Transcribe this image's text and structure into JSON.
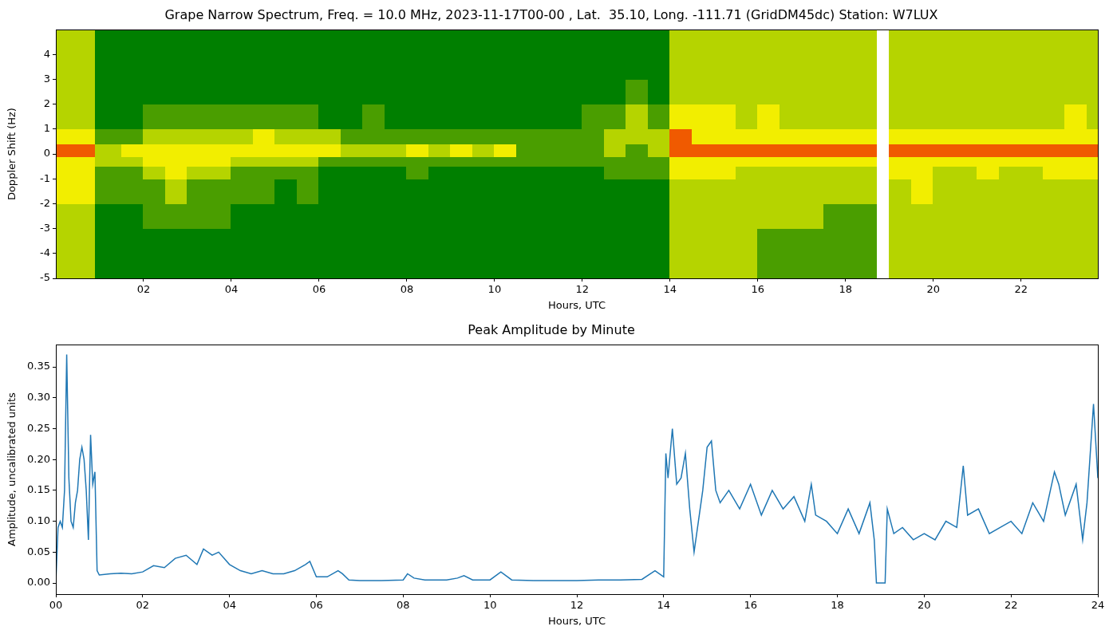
{
  "chart_data": [
    {
      "type": "heatmap",
      "title": "Grape Narrow Spectrum, Freq. = 10.0 MHz, 2023-11-17T00-00 , Lat.  35.10, Long. -111.71 (GridDM45dc) Station: W7LUX",
      "x_label": "Hours, UTC",
      "y_label": "Doppler Shift (Hz)",
      "x_edges": [
        0,
        0.5,
        0.9,
        1.5,
        2,
        2.5,
        3,
        3.5,
        4,
        4.5,
        5,
        5.5,
        6,
        6.5,
        7,
        7.5,
        8,
        8.5,
        9,
        9.5,
        10,
        10.5,
        11,
        11.5,
        12,
        12.5,
        13,
        13.5,
        14,
        14.5,
        15,
        15.5,
        16,
        16.5,
        17,
        17.5,
        18,
        18.5,
        18.7,
        19.0,
        19.5,
        20,
        20.5,
        21,
        21.5,
        22,
        22.5,
        23,
        23.5,
        23.75
      ],
      "y_edges": [
        -5,
        -3,
        -2,
        -1,
        -0.5,
        -0.1,
        0.4,
        1,
        2,
        3,
        5
      ],
      "cells": [
        [
          2,
          2,
          3,
          3,
          3,
          4,
          3,
          2,
          2,
          2
        ],
        [
          2,
          2,
          3,
          3,
          3,
          4,
          3,
          2,
          2,
          2
        ],
        [
          0,
          0,
          1,
          1,
          2,
          2,
          1,
          0,
          0,
          0
        ],
        [
          0,
          0,
          1,
          1,
          2,
          3,
          1,
          0,
          0,
          0
        ],
        [
          0,
          1,
          1,
          2,
          3,
          3,
          2,
          1,
          0,
          0
        ],
        [
          0,
          1,
          2,
          3,
          3,
          3,
          2,
          1,
          0,
          0
        ],
        [
          0,
          1,
          1,
          2,
          3,
          3,
          2,
          1,
          0,
          0
        ],
        [
          0,
          1,
          1,
          2,
          3,
          3,
          2,
          1,
          0,
          0
        ],
        [
          0,
          0,
          1,
          1,
          2,
          3,
          2,
          1,
          0,
          0
        ],
        [
          0,
          0,
          1,
          1,
          2,
          3,
          3,
          1,
          0,
          0
        ],
        [
          0,
          0,
          0,
          1,
          2,
          3,
          2,
          1,
          0,
          0
        ],
        [
          0,
          0,
          1,
          1,
          2,
          3,
          2,
          1,
          0,
          0
        ],
        [
          0,
          0,
          0,
          0,
          1,
          3,
          2,
          0,
          0,
          0
        ],
        [
          0,
          0,
          0,
          0,
          1,
          2,
          1,
          0,
          0,
          0
        ],
        [
          0,
          0,
          0,
          0,
          1,
          2,
          1,
          1,
          0,
          0
        ],
        [
          0,
          0,
          0,
          0,
          1,
          2,
          1,
          0,
          0,
          0
        ],
        [
          0,
          0,
          0,
          1,
          1,
          3,
          1,
          0,
          0,
          0
        ],
        [
          0,
          0,
          0,
          0,
          1,
          2,
          1,
          0,
          0,
          0
        ],
        [
          0,
          0,
          0,
          0,
          1,
          3,
          1,
          0,
          0,
          0
        ],
        [
          0,
          0,
          0,
          0,
          1,
          2,
          1,
          0,
          0,
          0
        ],
        [
          0,
          0,
          0,
          0,
          1,
          3,
          1,
          0,
          0,
          0
        ],
        [
          0,
          0,
          0,
          0,
          1,
          1,
          1,
          0,
          0,
          0
        ],
        [
          0,
          0,
          0,
          0,
          1,
          1,
          1,
          0,
          0,
          0
        ],
        [
          0,
          0,
          0,
          0,
          1,
          1,
          1,
          0,
          0,
          0
        ],
        [
          0,
          0,
          0,
          0,
          1,
          1,
          1,
          1,
          0,
          0
        ],
        [
          0,
          0,
          0,
          1,
          1,
          2,
          2,
          1,
          0,
          0
        ],
        [
          0,
          0,
          0,
          1,
          1,
          1,
          2,
          2,
          1,
          0
        ],
        [
          0,
          0,
          0,
          1,
          1,
          2,
          2,
          1,
          0,
          0
        ],
        [
          2,
          2,
          2,
          3,
          3,
          4,
          4,
          3,
          2,
          2
        ],
        [
          2,
          2,
          2,
          3,
          3,
          4,
          3,
          3,
          2,
          2
        ],
        [
          2,
          2,
          2,
          3,
          3,
          4,
          3,
          3,
          2,
          2
        ],
        [
          2,
          2,
          2,
          2,
          3,
          4,
          3,
          2,
          2,
          2
        ],
        [
          1,
          2,
          2,
          2,
          3,
          4,
          3,
          3,
          2,
          2
        ],
        [
          1,
          2,
          2,
          2,
          3,
          4,
          3,
          2,
          2,
          2
        ],
        [
          1,
          2,
          2,
          2,
          3,
          4,
          3,
          2,
          2,
          2
        ],
        [
          1,
          1,
          2,
          2,
          3,
          4,
          3,
          2,
          2,
          2
        ],
        [
          1,
          1,
          2,
          2,
          3,
          4,
          3,
          2,
          2,
          2
        ],
        [
          1,
          1,
          2,
          2,
          3,
          4,
          3,
          2,
          2,
          2
        ],
        [
          null,
          null,
          null,
          null,
          null,
          null,
          null,
          null,
          null,
          null
        ],
        [
          2,
          2,
          2,
          3,
          3,
          4,
          3,
          2,
          2,
          2
        ],
        [
          2,
          2,
          3,
          3,
          3,
          4,
          3,
          2,
          2,
          2
        ],
        [
          2,
          2,
          2,
          2,
          3,
          4,
          3,
          2,
          2,
          2
        ],
        [
          2,
          2,
          2,
          2,
          3,
          4,
          3,
          2,
          2,
          2
        ],
        [
          2,
          2,
          2,
          3,
          3,
          4,
          3,
          2,
          2,
          2
        ],
        [
          2,
          2,
          2,
          2,
          3,
          4,
          3,
          2,
          2,
          2
        ],
        [
          2,
          2,
          2,
          2,
          3,
          4,
          3,
          2,
          2,
          2
        ],
        [
          2,
          2,
          2,
          3,
          3,
          4,
          3,
          2,
          2,
          2
        ],
        [
          2,
          2,
          2,
          3,
          3,
          4,
          3,
          3,
          2,
          2
        ],
        [
          2,
          2,
          2,
          3,
          3,
          4,
          3,
          2,
          2,
          2
        ]
      ],
      "xlim": [
        0,
        23.75
      ],
      "ylim": [
        -5,
        5
      ],
      "xticks": [
        {
          "value": 2,
          "label": "02"
        },
        {
          "value": 4,
          "label": "04"
        },
        {
          "value": 6,
          "label": "06"
        },
        {
          "value": 8,
          "label": "08"
        },
        {
          "value": 10,
          "label": "10"
        },
        {
          "value": 12,
          "label": "12"
        },
        {
          "value": 14,
          "label": "14"
        },
        {
          "value": 16,
          "label": "16"
        },
        {
          "value": 18,
          "label": "18"
        },
        {
          "value": 20,
          "label": "20"
        },
        {
          "value": 22,
          "label": "22"
        }
      ],
      "yticks": [
        -5,
        -4,
        -3,
        -2,
        -1,
        0,
        1,
        2,
        3,
        4
      ],
      "grid": false
    },
    {
      "type": "line",
      "title": "Peak Amplitude by Minute",
      "x_label": "Hours, UTC",
      "y_label": "Amplitude, uncalibrated units",
      "x": [
        0,
        0.05,
        0.1,
        0.15,
        0.2,
        0.25,
        0.3,
        0.35,
        0.4,
        0.45,
        0.5,
        0.55,
        0.6,
        0.65,
        0.7,
        0.75,
        0.8,
        0.85,
        0.9,
        0.95,
        1.0,
        1.25,
        1.5,
        1.75,
        2.0,
        2.25,
        2.5,
        2.75,
        3.0,
        3.25,
        3.4,
        3.6,
        3.75,
        4.0,
        4.25,
        4.5,
        4.75,
        5.0,
        5.25,
        5.5,
        5.75,
        5.85,
        6.0,
        6.25,
        6.5,
        6.6,
        6.75,
        7.0,
        7.5,
        8.0,
        8.1,
        8.25,
        8.5,
        9.0,
        9.25,
        9.4,
        9.6,
        10.0,
        10.25,
        10.5,
        11.0,
        11.5,
        12.0,
        12.5,
        13.0,
        13.5,
        13.8,
        14.0,
        14.05,
        14.1,
        14.2,
        14.3,
        14.4,
        14.5,
        14.6,
        14.7,
        14.8,
        14.9,
        15.0,
        15.1,
        15.2,
        15.3,
        15.5,
        15.75,
        16.0,
        16.25,
        16.5,
        16.75,
        17.0,
        17.25,
        17.4,
        17.5,
        17.75,
        18.0,
        18.25,
        18.5,
        18.75,
        18.85,
        18.9,
        19.0,
        19.1,
        19.15,
        19.3,
        19.5,
        19.75,
        20.0,
        20.25,
        20.5,
        20.75,
        20.9,
        21.0,
        21.25,
        21.5,
        21.75,
        22.0,
        22.25,
        22.5,
        22.75,
        23.0,
        23.1,
        23.25,
        23.5,
        23.65,
        23.75,
        23.9,
        24.0
      ],
      "values": [
        0,
        0.09,
        0.1,
        0.09,
        0.15,
        0.37,
        0.17,
        0.1,
        0.09,
        0.13,
        0.15,
        0.2,
        0.22,
        0.2,
        0.15,
        0.07,
        0.24,
        0.16,
        0.18,
        0.02,
        0.013,
        0.015,
        0.016,
        0.015,
        0.018,
        0.028,
        0.025,
        0.04,
        0.045,
        0.03,
        0.055,
        0.045,
        0.05,
        0.03,
        0.02,
        0.015,
        0.02,
        0.015,
        0.015,
        0.02,
        0.03,
        0.035,
        0.01,
        0.01,
        0.02,
        0.015,
        0.005,
        0.004,
        0.004,
        0.005,
        0.015,
        0.008,
        0.005,
        0.005,
        0.008,
        0.012,
        0.005,
        0.005,
        0.018,
        0.005,
        0.004,
        0.004,
        0.004,
        0.005,
        0.005,
        0.006,
        0.02,
        0.01,
        0.21,
        0.17,
        0.25,
        0.16,
        0.17,
        0.21,
        0.12,
        0.05,
        0.1,
        0.15,
        0.22,
        0.23,
        0.15,
        0.13,
        0.15,
        0.12,
        0.16,
        0.11,
        0.15,
        0.12,
        0.14,
        0.1,
        0.16,
        0.11,
        0.1,
        0.08,
        0.12,
        0.08,
        0.13,
        0.07,
        0,
        0,
        0,
        0.12,
        0.08,
        0.09,
        0.07,
        0.08,
        0.07,
        0.1,
        0.09,
        0.19,
        0.11,
        0.12,
        0.08,
        0.09,
        0.1,
        0.08,
        0.13,
        0.1,
        0.18,
        0.16,
        0.11,
        0.16,
        0.07,
        0.13,
        0.29,
        0.17
      ],
      "color": "#1f77b4",
      "xlim": [
        0,
        24
      ],
      "ylim": [
        -0.018,
        0.386
      ],
      "xticks": [
        {
          "value": 0,
          "label": "00"
        },
        {
          "value": 2,
          "label": "02"
        },
        {
          "value": 4,
          "label": "04"
        },
        {
          "value": 6,
          "label": "06"
        },
        {
          "value": 8,
          "label": "08"
        },
        {
          "value": 10,
          "label": "10"
        },
        {
          "value": 12,
          "label": "12"
        },
        {
          "value": 14,
          "label": "14"
        },
        {
          "value": 16,
          "label": "16"
        },
        {
          "value": 18,
          "label": "18"
        },
        {
          "value": 20,
          "label": "20"
        },
        {
          "value": 22,
          "label": "22"
        },
        {
          "value": 24,
          "label": "24"
        }
      ],
      "yticks": [
        {
          "value": 0,
          "label": "0.00"
        },
        0.05,
        {
          "value": 0.1,
          "label": "0.10"
        },
        0.15,
        {
          "value": 0.2,
          "label": "0.20"
        },
        0.25,
        {
          "value": 0.3,
          "label": "0.30"
        },
        0.35
      ],
      "grid": false
    }
  ]
}
